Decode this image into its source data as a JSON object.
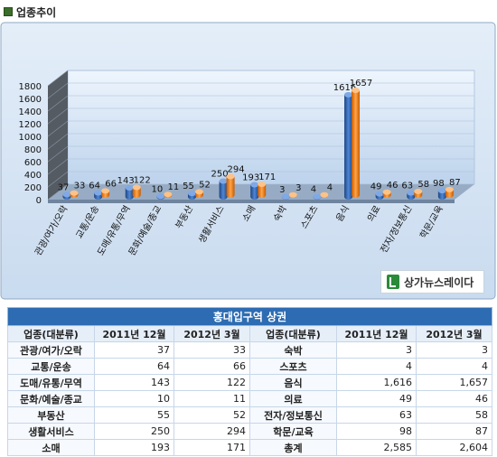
{
  "header": {
    "title": "업종추이"
  },
  "chart_data": {
    "type": "bar",
    "categories": [
      "관광/여가/오락",
      "교통/운송",
      "도매/유통/무역",
      "문화/예술/종교",
      "부동산",
      "생활서비스",
      "소매",
      "숙박",
      "스포츠",
      "음식",
      "의료",
      "전자/정보통신",
      "학문/교육"
    ],
    "series": [
      {
        "name": "2011년 12월",
        "values": [
          37,
          64,
          143,
          10,
          55,
          250,
          193,
          3,
          4,
          1616,
          49,
          63,
          98
        ]
      },
      {
        "name": "2012년 3월",
        "values": [
          33,
          66,
          122,
          11,
          52,
          294,
          171,
          3,
          4,
          1657,
          46,
          58,
          87
        ]
      }
    ],
    "yticks": [
      "0",
      "200",
      "400",
      "600",
      "800",
      "1000",
      "1200",
      "1400",
      "1600",
      "1800"
    ],
    "ylim": [
      0,
      1800
    ],
    "grid": true,
    "legend": "none",
    "colors": {
      "series1": "#2e5fa8",
      "series2": "#f07d12",
      "wall": "#cfe0f5",
      "floor": "#9fb4cc"
    }
  },
  "logo": {
    "text": "상가뉴스레이다"
  },
  "table": {
    "title": "홍대입구역 상권",
    "headers": [
      "업종(대분류)",
      "2011년 12월",
      "2012년 3월",
      "업종(대분류)",
      "2011년 12월",
      "2012년 3월"
    ],
    "rows": [
      [
        "관광/여가/오락",
        "37",
        "33",
        "숙박",
        "3",
        "3"
      ],
      [
        "교통/운송",
        "64",
        "66",
        "스포츠",
        "4",
        "4"
      ],
      [
        "도매/유통/무역",
        "143",
        "122",
        "음식",
        "1,616",
        "1,657"
      ],
      [
        "문화/예술/종교",
        "10",
        "11",
        "의료",
        "49",
        "46"
      ],
      [
        "부동산",
        "55",
        "52",
        "전자/정보통신",
        "63",
        "58"
      ],
      [
        "생활서비스",
        "250",
        "294",
        "학문/교육",
        "98",
        "87"
      ],
      [
        "소매",
        "193",
        "171",
        "총계",
        "2,585",
        "2,604"
      ]
    ]
  }
}
